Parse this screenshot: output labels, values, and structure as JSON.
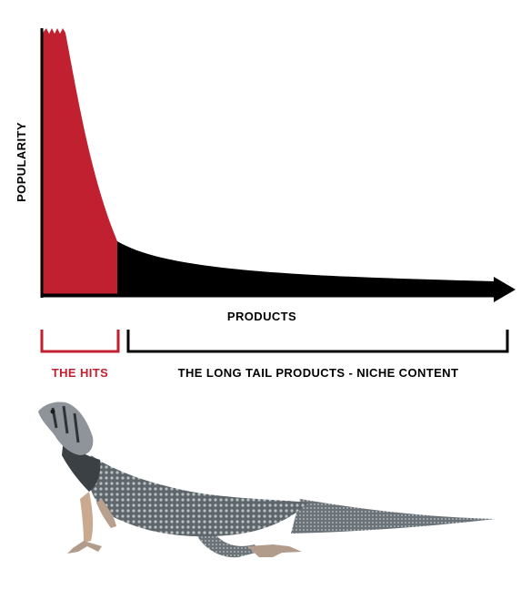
{
  "diagram": {
    "y_axis_label": "POPULARITY",
    "x_axis_label": "PRODUCTS",
    "hits_label": "THE HITS",
    "tail_label": "THE LONG TAIL PRODUCTS - NICHE CONTENT",
    "picture": "lizard-photo"
  },
  "colors": {
    "hits": "#c0202f",
    "tail": "#000000",
    "axis": "#000000",
    "text": "#000000",
    "background": "#ffffff",
    "lizard_body": "#6b7378",
    "lizard_leg": "#c9a98f"
  }
}
